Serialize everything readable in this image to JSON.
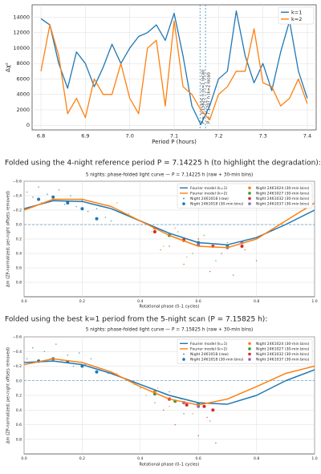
{
  "chart_data": [
    {
      "type": "line",
      "xlabel": "Period P (hours)",
      "ylabel": "Δχ²",
      "x": [
        6.8,
        6.82,
        6.84,
        6.86,
        6.88,
        6.9,
        6.92,
        6.94,
        6.96,
        6.98,
        7.0,
        7.02,
        7.04,
        7.06,
        7.08,
        7.1,
        7.12,
        7.14,
        7.16,
        7.18,
        7.2,
        7.22,
        7.24,
        7.26,
        7.28,
        7.3,
        7.32,
        7.34,
        7.36,
        7.38,
        7.4
      ],
      "series": [
        {
          "name": "k=1",
          "color": "#1f77b4",
          "style": "line",
          "values": [
            13800,
            13000,
            8000,
            4800,
            9500,
            8000,
            5000,
            7500,
            10500,
            8000,
            10000,
            11500,
            12000,
            13000,
            11000,
            14500,
            9000,
            2500,
            100,
            2500,
            6000,
            7000,
            14800,
            9000,
            5500,
            8000,
            4500,
            9500,
            13500,
            7000,
            3500
          ]
        },
        {
          "name": "k=2",
          "color": "#ff7f0e",
          "style": "line",
          "values": [
            7000,
            13000,
            9000,
            1500,
            3500,
            1000,
            6000,
            4000,
            4000,
            8000,
            3500,
            1500,
            10000,
            11000,
            2500,
            13500,
            5000,
            4000,
            2000,
            700,
            4000,
            5000,
            7000,
            7000,
            12500,
            5500,
            5000,
            2500,
            3500,
            6000,
            2800
          ]
        }
      ],
      "annotations": [
        {
          "x": 7.15825,
          "text": "P = 7.15825 h (k=1 local)"
        },
        {
          "x": 7.1707,
          "text": "P = 7.1707 h (k=2 local)"
        }
      ],
      "xlim": [
        6.78,
        7.42
      ],
      "ylim": [
        -600,
        15600
      ],
      "xticks": [
        6.8,
        6.9,
        {
          "value": 7,
          "label": "7.0"
        },
        7.1,
        7.2,
        7.3,
        7.4
      ],
      "yticks": [
        0,
        2000,
        4000,
        6000,
        8000,
        10000,
        12000,
        14000
      ],
      "grid": true,
      "legend": "upper right",
      "invert_y": false
    },
    {
      "type": "scatter",
      "title": "5 nights: phase-folded light curve — P = 7.14225 h (raw + 30-min bins)",
      "xlabel": "Rotational phase (0–1 cycles)",
      "ylabel": "Δm (ZP-normalized; per-night offsets removed)",
      "reference_line": 0,
      "series": [
        {
          "name": "Fourier model (k=1)",
          "color": "#1f77b4",
          "style": "line",
          "x": [
            0,
            0.1,
            0.2,
            0.3,
            0.4,
            0.5,
            0.6,
            0.7,
            0.8,
            0.9,
            1.0
          ],
          "values": [
            -0.22,
            -0.33,
            -0.32,
            -0.22,
            -0.05,
            0.12,
            0.25,
            0.28,
            0.18,
            0.0,
            -0.2
          ]
        },
        {
          "name": "Fourier model (k=2)",
          "color": "#ff7f0e",
          "style": "line",
          "x": [
            0,
            0.1,
            0.2,
            0.3,
            0.4,
            0.5,
            0.6,
            0.7,
            0.8,
            0.9,
            1.0
          ],
          "values": [
            -0.2,
            -0.35,
            -0.35,
            -0.25,
            -0.05,
            0.15,
            0.3,
            0.32,
            0.2,
            -0.05,
            -0.3
          ]
        },
        {
          "name": "Night 2461018 (raw)",
          "color": "#1f77b4",
          "style": "dots",
          "x": [
            0.01,
            0.03,
            0.05,
            0.06,
            0.08,
            0.1,
            0.12,
            0.14,
            0.16,
            0.18,
            0.2,
            0.22,
            0.25,
            0.28,
            0.3
          ],
          "values": [
            -0.45,
            -0.38,
            -0.52,
            -0.3,
            -0.42,
            -0.35,
            -0.48,
            -0.28,
            -0.4,
            -0.25,
            -0.33,
            -0.18,
            -0.22,
            -0.1,
            -0.05
          ]
        },
        {
          "name": "Night 2461018 (30-min bins)",
          "color": "#1f77b4",
          "style": "points",
          "x": [
            0.05,
            0.1,
            0.15,
            0.2,
            0.25
          ],
          "values": [
            -0.35,
            -0.38,
            -0.3,
            -0.22,
            -0.08
          ]
        },
        {
          "name": "Night 2461024 (30-min bins)",
          "color": "#ff7f0e",
          "style": "points",
          "x": [
            0.45,
            0.5,
            0.55,
            0.6
          ],
          "values": [
            0.05,
            0.15,
            0.2,
            0.28
          ]
        },
        {
          "name": "Night 2461027 (30-min bins)",
          "color": "#2ca02c",
          "style": "points",
          "x": [
            0.5,
            0.6,
            0.7
          ],
          "values": [
            0.15,
            0.25,
            0.3
          ]
        },
        {
          "name": "Night 2461032 (30-min bins)",
          "color": "#d62728",
          "style": "points",
          "x": [
            0.45,
            0.55,
            0.65,
            0.75
          ],
          "values": [
            0.1,
            0.22,
            0.3,
            0.3
          ]
        },
        {
          "name": "Night 2461037 (30-min bins)",
          "color": "#9467bd",
          "style": "points",
          "x": [
            0.6,
            0.7,
            0.75
          ],
          "values": [
            0.28,
            0.32,
            0.25
          ]
        },
        {
          "color": "#ff7f0e",
          "style": "dots",
          "x": [
            0.32,
            0.36,
            0.4,
            0.44,
            0.48,
            0.52,
            0.56,
            0.6
          ],
          "values": [
            -0.3,
            -0.15,
            -0.05,
            0.1,
            0.3,
            0.05,
            0.45,
            0.2
          ]
        },
        {
          "color": "#2ca02c",
          "style": "dots",
          "x": [
            0.42,
            0.47,
            0.53,
            0.58,
            0.62,
            0.66,
            0.7
          ],
          "values": [
            0.0,
            0.35,
            0.1,
            0.4,
            0.15,
            0.5,
            0.25
          ]
        },
        {
          "color": "#d62728",
          "style": "dots",
          "x": [
            0.5,
            0.55,
            0.6,
            0.64,
            0.68,
            0.72,
            0.76,
            0.8
          ],
          "values": [
            0.3,
            0.55,
            0.2,
            0.65,
            0.4,
            0.7,
            0.35,
            0.5
          ]
        }
      ],
      "xlim": [
        0,
        1
      ],
      "ylim": [
        -0.6,
        1.0
      ],
      "invert_y": true,
      "xticks": [
        {
          "value": 0,
          "label": "0.0"
        },
        0.2,
        0.4,
        0.6,
        0.8,
        {
          "value": 1,
          "label": "1.0"
        }
      ],
      "yticks": [
        {
          "value": -0.6,
          "label": "−0.6"
        },
        {
          "value": -0.4,
          "label": "−0.4"
        },
        {
          "value": -0.2,
          "label": "−0.2"
        },
        {
          "value": 0,
          "label": "0.0"
        },
        0.2,
        0.4,
        0.6,
        0.8
      ],
      "grid": true,
      "legend": "upper right",
      "legend_columns": 2
    },
    {
      "type": "scatter",
      "title": "5 nights: phase-folded light curve — P = 7.15825 h (raw + 30-min bins)",
      "xlabel": "Rotational phase (0–1 cycles)",
      "ylabel": "Δm (ZP-normalized; per-night offsets removed)",
      "reference_line": 0,
      "series": [
        {
          "name": "Fourier model (k=1)",
          "color": "#1f77b4",
          "style": "line",
          "x": [
            0,
            0.1,
            0.2,
            0.3,
            0.4,
            0.5,
            0.6,
            0.7,
            0.8,
            0.9,
            1.0
          ],
          "values": [
            -0.25,
            -0.27,
            -0.22,
            -0.1,
            0.05,
            0.2,
            0.3,
            0.32,
            0.2,
            0.0,
            -0.15
          ]
        },
        {
          "name": "Fourier model (k=2)",
          "color": "#ff7f0e",
          "style": "line",
          "x": [
            0,
            0.1,
            0.2,
            0.3,
            0.4,
            0.5,
            0.6,
            0.7,
            0.8,
            0.9,
            1.0
          ],
          "values": [
            -0.22,
            -0.3,
            -0.25,
            -0.12,
            0.08,
            0.25,
            0.33,
            0.25,
            0.08,
            -0.1,
            -0.2
          ]
        },
        {
          "name": "Night 2461018 (raw)",
          "color": "#1f77b4",
          "style": "dots",
          "x": [
            0.01,
            0.03,
            0.05,
            0.07,
            0.09,
            0.11,
            0.13,
            0.15,
            0.17,
            0.19,
            0.21,
            0.23,
            0.26,
            0.29
          ],
          "values": [
            -0.3,
            -0.45,
            -0.25,
            -0.4,
            -0.3,
            -0.5,
            -0.28,
            -0.35,
            -0.2,
            -0.38,
            -0.22,
            -0.3,
            -0.15,
            -0.1
          ]
        },
        {
          "name": "Night 2461018 (30-min bins)",
          "color": "#1f77b4",
          "style": "points",
          "x": [
            0.05,
            0.1,
            0.15,
            0.2,
            0.25
          ],
          "values": [
            -0.27,
            -0.3,
            -0.26,
            -0.2,
            -0.12
          ]
        },
        {
          "name": "Night 2461024 (30-min bins)",
          "color": "#ff7f0e",
          "style": "points",
          "x": [
            0.45,
            0.5,
            0.55,
            0.6
          ],
          "values": [
            0.15,
            0.25,
            0.3,
            0.33
          ]
        },
        {
          "name": "Night 2461027 (30-min bins)",
          "color": "#2ca02c",
          "style": "points",
          "x": [
            0.45,
            0.52,
            0.6
          ],
          "values": [
            0.18,
            0.28,
            0.32
          ]
        },
        {
          "name": "Night 2461032 (30-min bins)",
          "color": "#d62728",
          "style": "points",
          "x": [
            0.5,
            0.56,
            0.62,
            0.65
          ],
          "values": [
            0.25,
            0.33,
            0.35,
            0.4
          ]
        },
        {
          "name": "Night 2461037 (30-min bins)",
          "color": "#9467bd",
          "style": "points",
          "x": [
            0.55,
            0.6
          ],
          "values": [
            0.3,
            0.35
          ]
        },
        {
          "color": "#ff7f0e",
          "style": "dots",
          "x": [
            0.32,
            0.38,
            0.42,
            0.46,
            0.5,
            0.54,
            0.58
          ],
          "values": [
            -0.1,
            0.05,
            0.2,
            0.1,
            0.35,
            0.25,
            0.45
          ]
        },
        {
          "color": "#2ca02c",
          "style": "dots",
          "x": [
            0.4,
            0.45,
            0.5,
            0.55,
            0.6,
            0.64
          ],
          "values": [
            0.1,
            0.3,
            0.15,
            0.45,
            0.3,
            0.55
          ]
        },
        {
          "color": "#d62728",
          "style": "dots",
          "x": [
            0.48,
            0.52,
            0.56,
            0.6,
            0.63,
            0.66
          ],
          "values": [
            0.4,
            0.6,
            0.3,
            0.75,
            0.5,
            0.85
          ]
        }
      ],
      "xlim": [
        0,
        1
      ],
      "ylim": [
        -0.6,
        1.0
      ],
      "invert_y": true,
      "xticks": [
        {
          "value": 0,
          "label": "0.0"
        },
        0.2,
        0.4,
        0.6,
        0.8,
        {
          "value": 1,
          "label": "1.0"
        }
      ],
      "yticks": [
        {
          "value": -0.6,
          "label": "−0.6"
        },
        {
          "value": -0.4,
          "label": "−0.4"
        },
        {
          "value": -0.2,
          "label": "−0.2"
        },
        {
          "value": 0,
          "label": "0.0"
        },
        0.2,
        0.4,
        0.6,
        0.8
      ],
      "grid": true,
      "legend": "upper right",
      "legend_columns": 2
    }
  ],
  "captions": [
    "Folded using the 4-night reference period P = 7.14225 h (to highlight the degradation):",
    "Folded using the best k=1 period from the 5-night scan (P = 7.15825 h):"
  ]
}
